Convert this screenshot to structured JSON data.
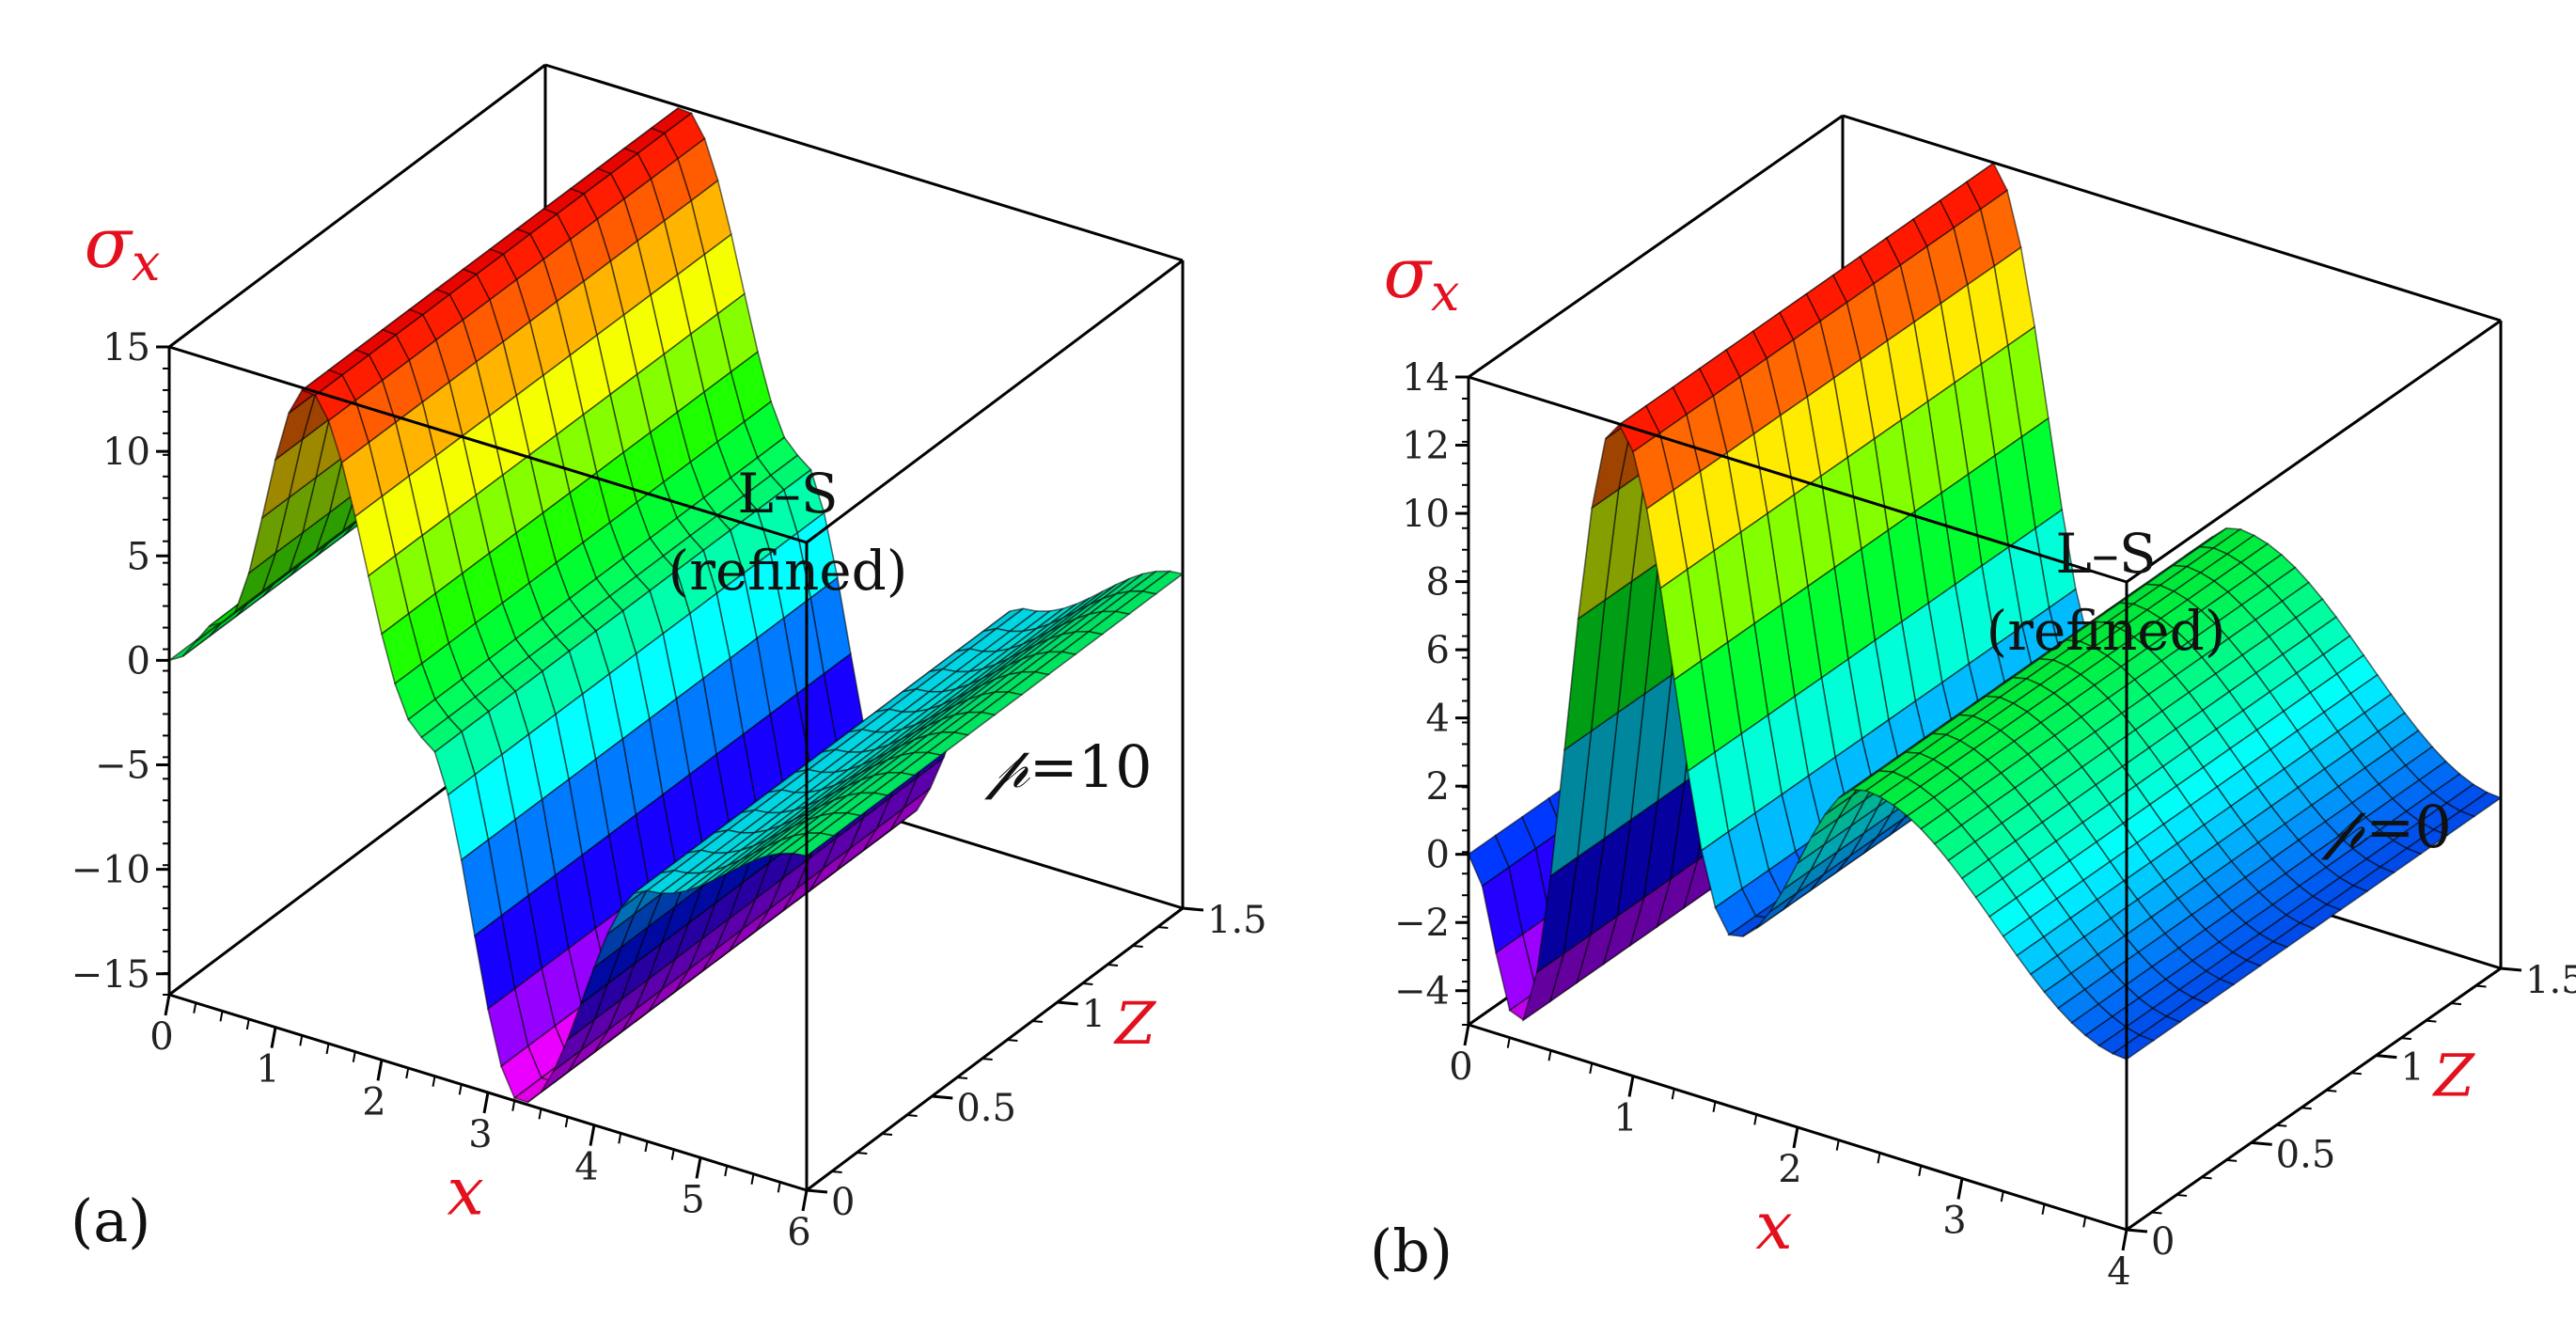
{
  "chart_data": [
    {
      "type": "surface3d",
      "panel_label": "(a)",
      "title_line1": "L–S",
      "title_line2": "(refined)",
      "annotation_symbol": "𝓅",
      "annotation_value": "=10",
      "zlabel_symbol": "σ",
      "zlabel_subscript": "x",
      "xlabel": "x",
      "ylabel": "Z",
      "xlim": [
        0,
        6
      ],
      "ylim": [
        0,
        1.5
      ],
      "zlim": [
        -16,
        15
      ],
      "xticks": [
        "0",
        "1",
        "2",
        "3",
        "4",
        "5",
        "6"
      ],
      "yticks": [
        "0",
        "0.5",
        "1",
        "1.5"
      ],
      "zticks": [
        "15",
        "10",
        "5",
        "0",
        "−5",
        "−10",
        "−15"
      ],
      "surface_profile": {
        "x": [
          0,
          0.5,
          1.3,
          2.4,
          3.3,
          4.5,
          6
        ],
        "sigma_x": [
          0,
          2.6,
          15,
          0,
          -16,
          -4,
          0
        ]
      }
    },
    {
      "type": "surface3d",
      "panel_label": "(b)",
      "title_line1": "L–S",
      "title_line2": "(refined)",
      "annotation_symbol": "𝓅",
      "annotation_value": "=0",
      "zlabel_symbol": "σ",
      "zlabel_subscript": "x",
      "xlabel": "x",
      "ylabel": "Z",
      "xlim": [
        0,
        4
      ],
      "ylim": [
        0,
        1.5
      ],
      "zlim": [
        -5,
        14
      ],
      "xticks": [
        "0",
        "1",
        "2",
        "3",
        "4"
      ],
      "yticks": [
        "0",
        "0.5",
        "1",
        "1.5"
      ],
      "zticks": [
        "14",
        "12",
        "10",
        "8",
        "6",
        "4",
        "2",
        "0",
        "−2",
        "−4"
      ],
      "surface_profile": {
        "x": [
          0,
          0.3,
          0.9,
          1.6,
          2.4,
          4
        ],
        "sigma_x": [
          0,
          -4.5,
          14,
          0,
          5.5,
          0
        ]
      }
    }
  ]
}
